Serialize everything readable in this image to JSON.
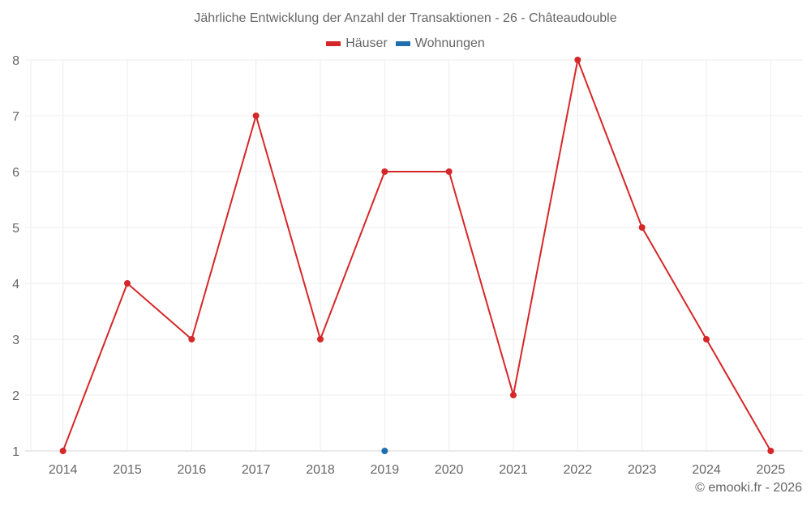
{
  "title": "Jährliche Entwicklung der Anzahl der Transaktionen - 26 - Châteaudouble",
  "legend": [
    {
      "label": "Häuser",
      "color": "#d62728"
    },
    {
      "label": "Wohnungen",
      "color": "#1f6fae"
    }
  ],
  "credit": "© emooki.fr - 2026",
  "chart_data": {
    "type": "line",
    "title": "Jährliche Entwicklung der Anzahl der Transaktionen - 26 - Châteaudouble",
    "xlabel": "",
    "ylabel": "",
    "categories": [
      "2014",
      "2015",
      "2016",
      "2017",
      "2018",
      "2019",
      "2020",
      "2021",
      "2022",
      "2023",
      "2024",
      "2025"
    ],
    "series": [
      {
        "name": "Häuser",
        "color": "#d62728",
        "values": [
          1,
          4,
          3,
          7,
          3,
          6,
          6,
          2,
          8,
          5,
          3,
          1
        ]
      },
      {
        "name": "Wohnungen",
        "color": "#1f6fae",
        "values": [
          null,
          null,
          null,
          null,
          null,
          1,
          null,
          null,
          null,
          null,
          null,
          null
        ]
      }
    ],
    "ylim": [
      1,
      8
    ],
    "yticks": [
      1,
      2,
      3,
      4,
      5,
      6,
      7,
      8
    ],
    "grid": true,
    "legend_position": "top"
  }
}
